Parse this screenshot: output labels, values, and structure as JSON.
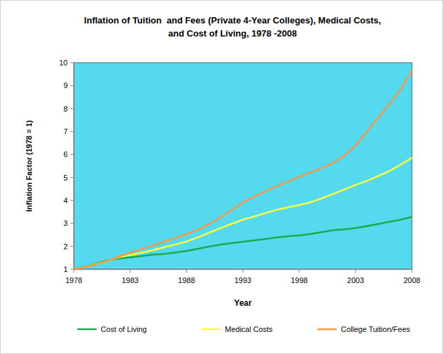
{
  "chart_data": {
    "type": "line",
    "title": "Inflation of Tuition  and Fees (Private 4-Year Colleges), Medical Costs,\nand Cost of Living, 1978 -2008",
    "x_label": "Year",
    "y_label": "Inflation Factor (1978 = 1)",
    "x": [
      1978,
      1979,
      1980,
      1981,
      1982,
      1983,
      1984,
      1985,
      1986,
      1987,
      1988,
      1989,
      1990,
      1991,
      1992,
      1993,
      1994,
      1995,
      1996,
      1997,
      1998,
      1999,
      2000,
      2001,
      2002,
      2003,
      2004,
      2005,
      2006,
      2007,
      2008
    ],
    "series": [
      {
        "name": "Cost of Living",
        "color": "#1da84b",
        "values": [
          1.0,
          1.11,
          1.26,
          1.39,
          1.47,
          1.52,
          1.58,
          1.64,
          1.67,
          1.73,
          1.8,
          1.89,
          1.99,
          2.07,
          2.14,
          2.2,
          2.26,
          2.32,
          2.39,
          2.44,
          2.48,
          2.54,
          2.62,
          2.7,
          2.74,
          2.8,
          2.88,
          2.97,
          3.07,
          3.16,
          3.28
        ]
      },
      {
        "name": "Medical Costs",
        "color": "#ffff3c",
        "values": [
          1.0,
          1.1,
          1.23,
          1.37,
          1.53,
          1.62,
          1.72,
          1.83,
          1.96,
          2.08,
          2.21,
          2.39,
          2.59,
          2.79,
          2.98,
          3.16,
          3.3,
          3.45,
          3.59,
          3.7,
          3.8,
          3.92,
          4.09,
          4.28,
          4.48,
          4.67,
          4.85,
          5.06,
          5.28,
          5.56,
          5.86
        ]
      },
      {
        "name": "College Tuition/Fees",
        "color": "#f79646",
        "values": [
          1.0,
          1.1,
          1.22,
          1.38,
          1.56,
          1.72,
          1.88,
          2.04,
          2.2,
          2.37,
          2.53,
          2.73,
          2.97,
          3.26,
          3.58,
          3.92,
          4.17,
          4.4,
          4.62,
          4.83,
          5.03,
          5.22,
          5.42,
          5.63,
          5.95,
          6.4,
          7.0,
          7.62,
          8.2,
          8.85,
          9.65
        ]
      }
    ],
    "xlim": [
      1978,
      2008
    ],
    "xticks": [
      1978,
      1983,
      1988,
      1993,
      1998,
      2003,
      2008
    ],
    "ylim": [
      1,
      10
    ],
    "yticks": [
      1,
      2,
      3,
      4,
      5,
      6,
      7,
      8,
      9,
      10
    ],
    "grid": false,
    "legend": "bottom"
  }
}
